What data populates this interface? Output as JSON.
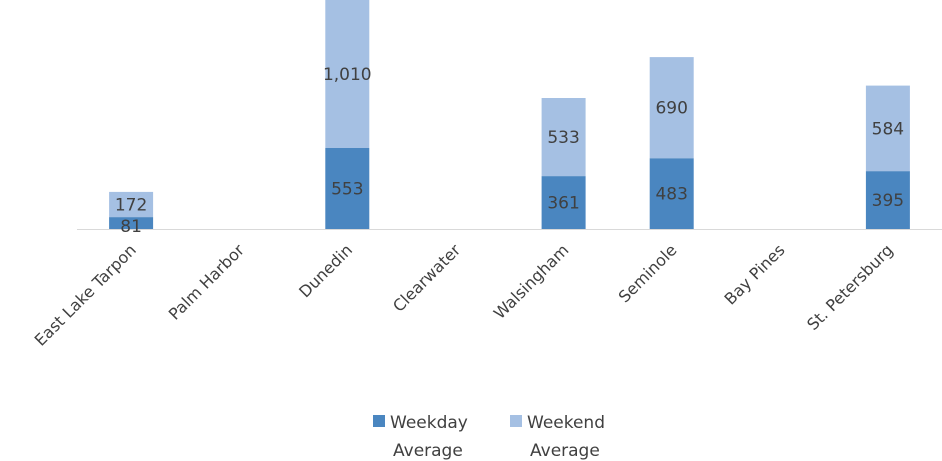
{
  "chart_data": {
    "type": "bar",
    "stacked": true,
    "categories": [
      "East Lake Tarpon",
      "Palm Harbor",
      "Dunedin",
      "Clearwater",
      "Walsingham",
      "Seminole",
      "Bay Pines",
      "St. Petersburg"
    ],
    "series": [
      {
        "name": "Weekday Average",
        "color": "#4a86c0",
        "values": [
          81,
          null,
          553,
          null,
          361,
          483,
          null,
          395
        ],
        "labels": [
          "81",
          "",
          "553",
          "",
          "361",
          "483",
          "",
          "395"
        ]
      },
      {
        "name": "Weekend Average",
        "color": "#a5c0e3",
        "values": [
          172,
          null,
          1010,
          null,
          533,
          690,
          null,
          584
        ],
        "labels": [
          "172",
          "",
          "1,010",
          "",
          "533",
          "690",
          "",
          "584"
        ]
      }
    ],
    "ylim": [
      0,
      1563
    ],
    "grid": false,
    "legend": "bottom",
    "title": "",
    "xlabel": "",
    "ylabel": ""
  }
}
